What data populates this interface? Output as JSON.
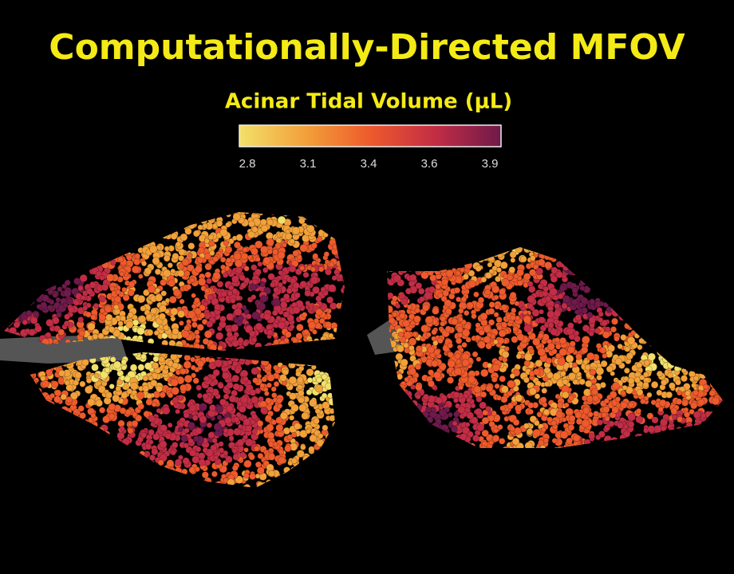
{
  "header": {
    "title": "Computationally-Directed MFOV"
  },
  "colorbar": {
    "label": "Acinar Tidal Volume (μL)",
    "ticks": [
      "2.8",
      "3.1",
      "3.4",
      "3.6",
      "3.9"
    ],
    "colors": [
      "#f3e06a",
      "#f2a13a",
      "#ee5a2c",
      "#c22d45",
      "#6e1a4a"
    ]
  }
}
